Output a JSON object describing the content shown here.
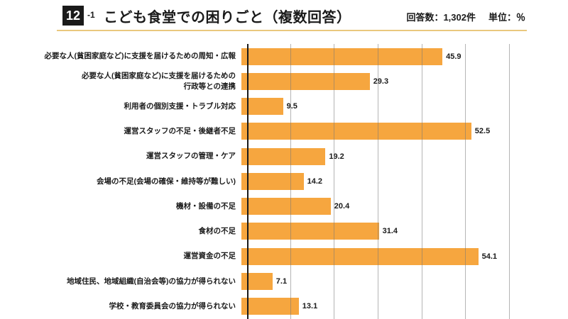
{
  "header": {
    "number": "12",
    "sub_number": "-1",
    "title": "こども食堂での困りごと（複数回答）",
    "response_count": "回答数：1,302件",
    "unit": "単位：％"
  },
  "colors": {
    "bar": "#F6A63F",
    "title_rule": "#E9C87E",
    "axis": "#1A1A1A",
    "gridline": "#787878",
    "number_box_bg": "#1A1A1A",
    "number_box_text": "#FFFFFF"
  },
  "chart_data": {
    "type": "bar",
    "orientation": "horizontal",
    "title": "こども食堂での困りごと（複数回答）",
    "unit": "%",
    "n_responses": "1,302",
    "categories": [
      "必要な人(貧困家庭など)に支援を届けるための周知・広報",
      "必要な人(貧困家庭など)に支援を届けるための\n行政等との連携",
      "利用者の個別支援・トラブル対応",
      "運営スタッフの不足・後継者不足",
      "運営スタッフの管理・ケア",
      "会場の不足(会場の確保・維持等が難しい)",
      "機材・設備の不足",
      "食材の不足",
      "運営資金の不足",
      "地域住民、地域組織(自治会等)の協力が得られない",
      "学校・教育委員会の協力が得られない"
    ],
    "values": [
      45.9,
      29.3,
      9.5,
      52.5,
      19.2,
      14.2,
      20.4,
      31.4,
      54.1,
      7.1,
      13.1
    ],
    "xlim": [
      0,
      60
    ],
    "gridline_interval": 10,
    "grid": true,
    "legend": false,
    "value_labels": true
  }
}
